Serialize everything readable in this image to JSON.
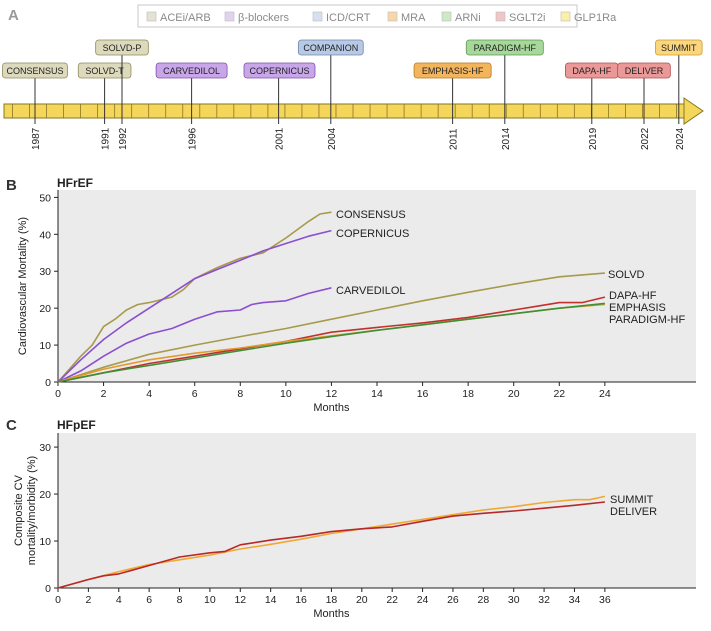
{
  "panel_labels": {
    "a": "A",
    "b": "B",
    "c": "C"
  },
  "legend": [
    {
      "label": "ACEi/ARB",
      "color": "#e4e2d0"
    },
    {
      "label": "β-blockers",
      "color": "#e2d2f1"
    },
    {
      "label": "ICD/CRT",
      "color": "#d6e1f0"
    },
    {
      "label": "MRA",
      "color": "#f6d8a8"
    },
    {
      "label": "ARNi",
      "color": "#cfe8c8"
    },
    {
      "label": "SGLT2i",
      "color": "#f1c6c6"
    },
    {
      "label": "GLP1Ra",
      "color": "#fbf0a8"
    }
  ],
  "timeline": {
    "years": [
      "1987",
      "1991",
      "1992",
      "1996",
      "2001",
      "2004",
      "2011",
      "2014",
      "2019",
      "2022",
      "2024"
    ],
    "trials": [
      {
        "label": "CONSENSUS",
        "year": 1987,
        "level": "low",
        "fill": "#dcd9bc",
        "stroke": "#8f8a5c"
      },
      {
        "label": "SOLVD-T",
        "year": 1991,
        "level": "low",
        "fill": "#dcd9bc",
        "stroke": "#8f8a5c"
      },
      {
        "label": "SOLVD-P",
        "year": 1992,
        "level": "high",
        "fill": "#dcd9bc",
        "stroke": "#8f8a5c"
      },
      {
        "label": "CARVEDILOL",
        "year": 1996,
        "level": "low",
        "fill": "#c9a6ea",
        "stroke": "#7b52a8"
      },
      {
        "label": "COPERNICUS",
        "year": 2001,
        "level": "low",
        "fill": "#c9a6ea",
        "stroke": "#7b52a8"
      },
      {
        "label": "COMPANION",
        "year": 2004,
        "level": "high",
        "fill": "#b8c9e6",
        "stroke": "#6f86ad"
      },
      {
        "label": "EMPHASIS-HF",
        "year": 2011,
        "level": "low",
        "fill": "#f3b45e",
        "stroke": "#b97a20"
      },
      {
        "label": "PARADIGM-HF",
        "year": 2014,
        "level": "high",
        "fill": "#a7d79b",
        "stroke": "#5c9c4e"
      },
      {
        "label": "DAPA-HF",
        "year": 2019,
        "level": "low",
        "fill": "#ea9898",
        "stroke": "#b24d4d"
      },
      {
        "label": "DELIVER",
        "year": 2022,
        "level": "low",
        "fill": "#ea9898",
        "stroke": "#b24d4d"
      },
      {
        "label": "SUMMIT",
        "year": 2024,
        "level": "high",
        "fill": "#fbd67e",
        "stroke": "#c99b2b"
      }
    ]
  },
  "chart_data": [
    {
      "type": "line",
      "title": "HFrEF",
      "xlabel": "Months",
      "ylabel": "Cardiovascular Mortality (%)",
      "xlim": [
        0,
        28
      ],
      "ylim": [
        0,
        52
      ],
      "xticks": [
        0,
        2,
        4,
        6,
        8,
        10,
        12,
        14,
        16,
        18,
        20,
        22,
        24
      ],
      "yticks": [
        0,
        10,
        20,
        30,
        40,
        50
      ],
      "series": [
        {
          "name": "CONSENSUS",
          "color": "#a69a4c",
          "x": [
            0,
            0.5,
            1,
            1.5,
            2,
            2.5,
            3,
            3.5,
            4,
            5,
            5.5,
            6,
            7,
            8,
            9,
            10,
            11,
            11.5,
            12
          ],
          "y": [
            0,
            3.5,
            7,
            10,
            15,
            17,
            19.5,
            21,
            21.5,
            23,
            25,
            28,
            31,
            33.5,
            35,
            39,
            43.5,
            45.5,
            46
          ]
        },
        {
          "name": "COPERNICUS",
          "color": "#8b4fcf",
          "x": [
            0,
            1,
            2,
            3,
            4,
            5,
            6,
            7,
            8,
            9,
            10,
            11,
            12
          ],
          "y": [
            0,
            6,
            11.5,
            16,
            20,
            24,
            28,
            30.5,
            33,
            35.5,
            37.5,
            39.5,
            41
          ]
        },
        {
          "name": "CARVEDILOL",
          "color": "#8b4fcf",
          "x": [
            0,
            1,
            2,
            3,
            4,
            5,
            6,
            7,
            8,
            8.5,
            9,
            10,
            11,
            12
          ],
          "y": [
            0,
            3,
            7,
            10.5,
            13,
            14.5,
            17,
            19,
            19.5,
            21,
            21.5,
            22,
            24,
            25.5
          ]
        },
        {
          "name": "SOLVD",
          "color": "#a69a4c",
          "x": [
            0,
            2,
            4,
            6,
            8,
            10,
            12,
            14,
            16,
            18,
            20,
            22,
            24
          ],
          "y": [
            0,
            4,
            7.5,
            10,
            12.3,
            14.5,
            17,
            19.5,
            22,
            24.3,
            26.5,
            28.5,
            29.5
          ]
        },
        {
          "name": "DAPA-HF",
          "color": "#c23030",
          "x": [
            0,
            2,
            4,
            6,
            8,
            10,
            12,
            14,
            16,
            18,
            20,
            21,
            22,
            23,
            24
          ],
          "y": [
            0,
            2.5,
            5,
            7,
            9,
            11,
            13.5,
            14.8,
            16,
            17.5,
            19.5,
            20.5,
            21.5,
            21.5,
            23
          ]
        },
        {
          "name": "EMPHASIS",
          "color": "#e39a2d",
          "x": [
            0,
            2,
            4,
            6,
            8,
            10,
            12,
            14,
            16,
            18,
            20,
            22,
            24
          ],
          "y": [
            0,
            3.5,
            6,
            7.8,
            9.2,
            11,
            12.5,
            14,
            15.5,
            17,
            18.5,
            20,
            21
          ]
        },
        {
          "name": "PARADIGM-HF",
          "color": "#3f8f34",
          "x": [
            0,
            2,
            4,
            6,
            8,
            10,
            12,
            14,
            16,
            18,
            20,
            22,
            24
          ],
          "y": [
            0,
            2.5,
            4.5,
            6.5,
            8.5,
            10.5,
            12.3,
            14,
            15.5,
            17,
            18.5,
            20,
            21.3
          ]
        }
      ],
      "series_labels": [
        "CONSENSUS",
        "COPERNICUS",
        "CARVEDILOL",
        "SOLVD",
        "DAPA-HF",
        "EMPHASIS",
        "PARADIGM-HF"
      ]
    },
    {
      "type": "line",
      "title": "HFpEF",
      "xlabel": "Months",
      "ylabel": "Composite CV mortality/morbidity (%)",
      "xlim": [
        0,
        42
      ],
      "ylim": [
        0,
        33
      ],
      "xticks": [
        0,
        2,
        4,
        6,
        8,
        10,
        12,
        14,
        16,
        18,
        20,
        22,
        24,
        26,
        28,
        30,
        32,
        34,
        36
      ],
      "yticks": [
        0,
        10,
        20,
        30
      ],
      "series": [
        {
          "name": "SUMMIT",
          "color": "#f0a832",
          "x": [
            0,
            2,
            4,
            6,
            8,
            10,
            12,
            14,
            16,
            18,
            20,
            22,
            24,
            26,
            28,
            30,
            32,
            34,
            35,
            36
          ],
          "y": [
            0,
            1.8,
            3.5,
            5,
            6,
            7,
            8.3,
            9.3,
            10.4,
            11.6,
            12.6,
            13.6,
            14.6,
            15.6,
            16.6,
            17.3,
            18.2,
            18.8,
            18.8,
            19.5
          ]
        },
        {
          "name": "DELIVER",
          "color": "#b8282a",
          "x": [
            0,
            2,
            3,
            4,
            6,
            8,
            10,
            11,
            12,
            14,
            16,
            18,
            20,
            22,
            24,
            26,
            28,
            30,
            32,
            34,
            36
          ],
          "y": [
            0,
            1.8,
            2.6,
            3,
            4.8,
            6.6,
            7.5,
            7.8,
            9.2,
            10.2,
            11,
            12,
            12.6,
            13,
            14.2,
            15.3,
            15.9,
            16.4,
            17,
            17.6,
            18.3
          ]
        }
      ],
      "series_labels": [
        "SUMMIT",
        "DELIVER"
      ]
    }
  ]
}
